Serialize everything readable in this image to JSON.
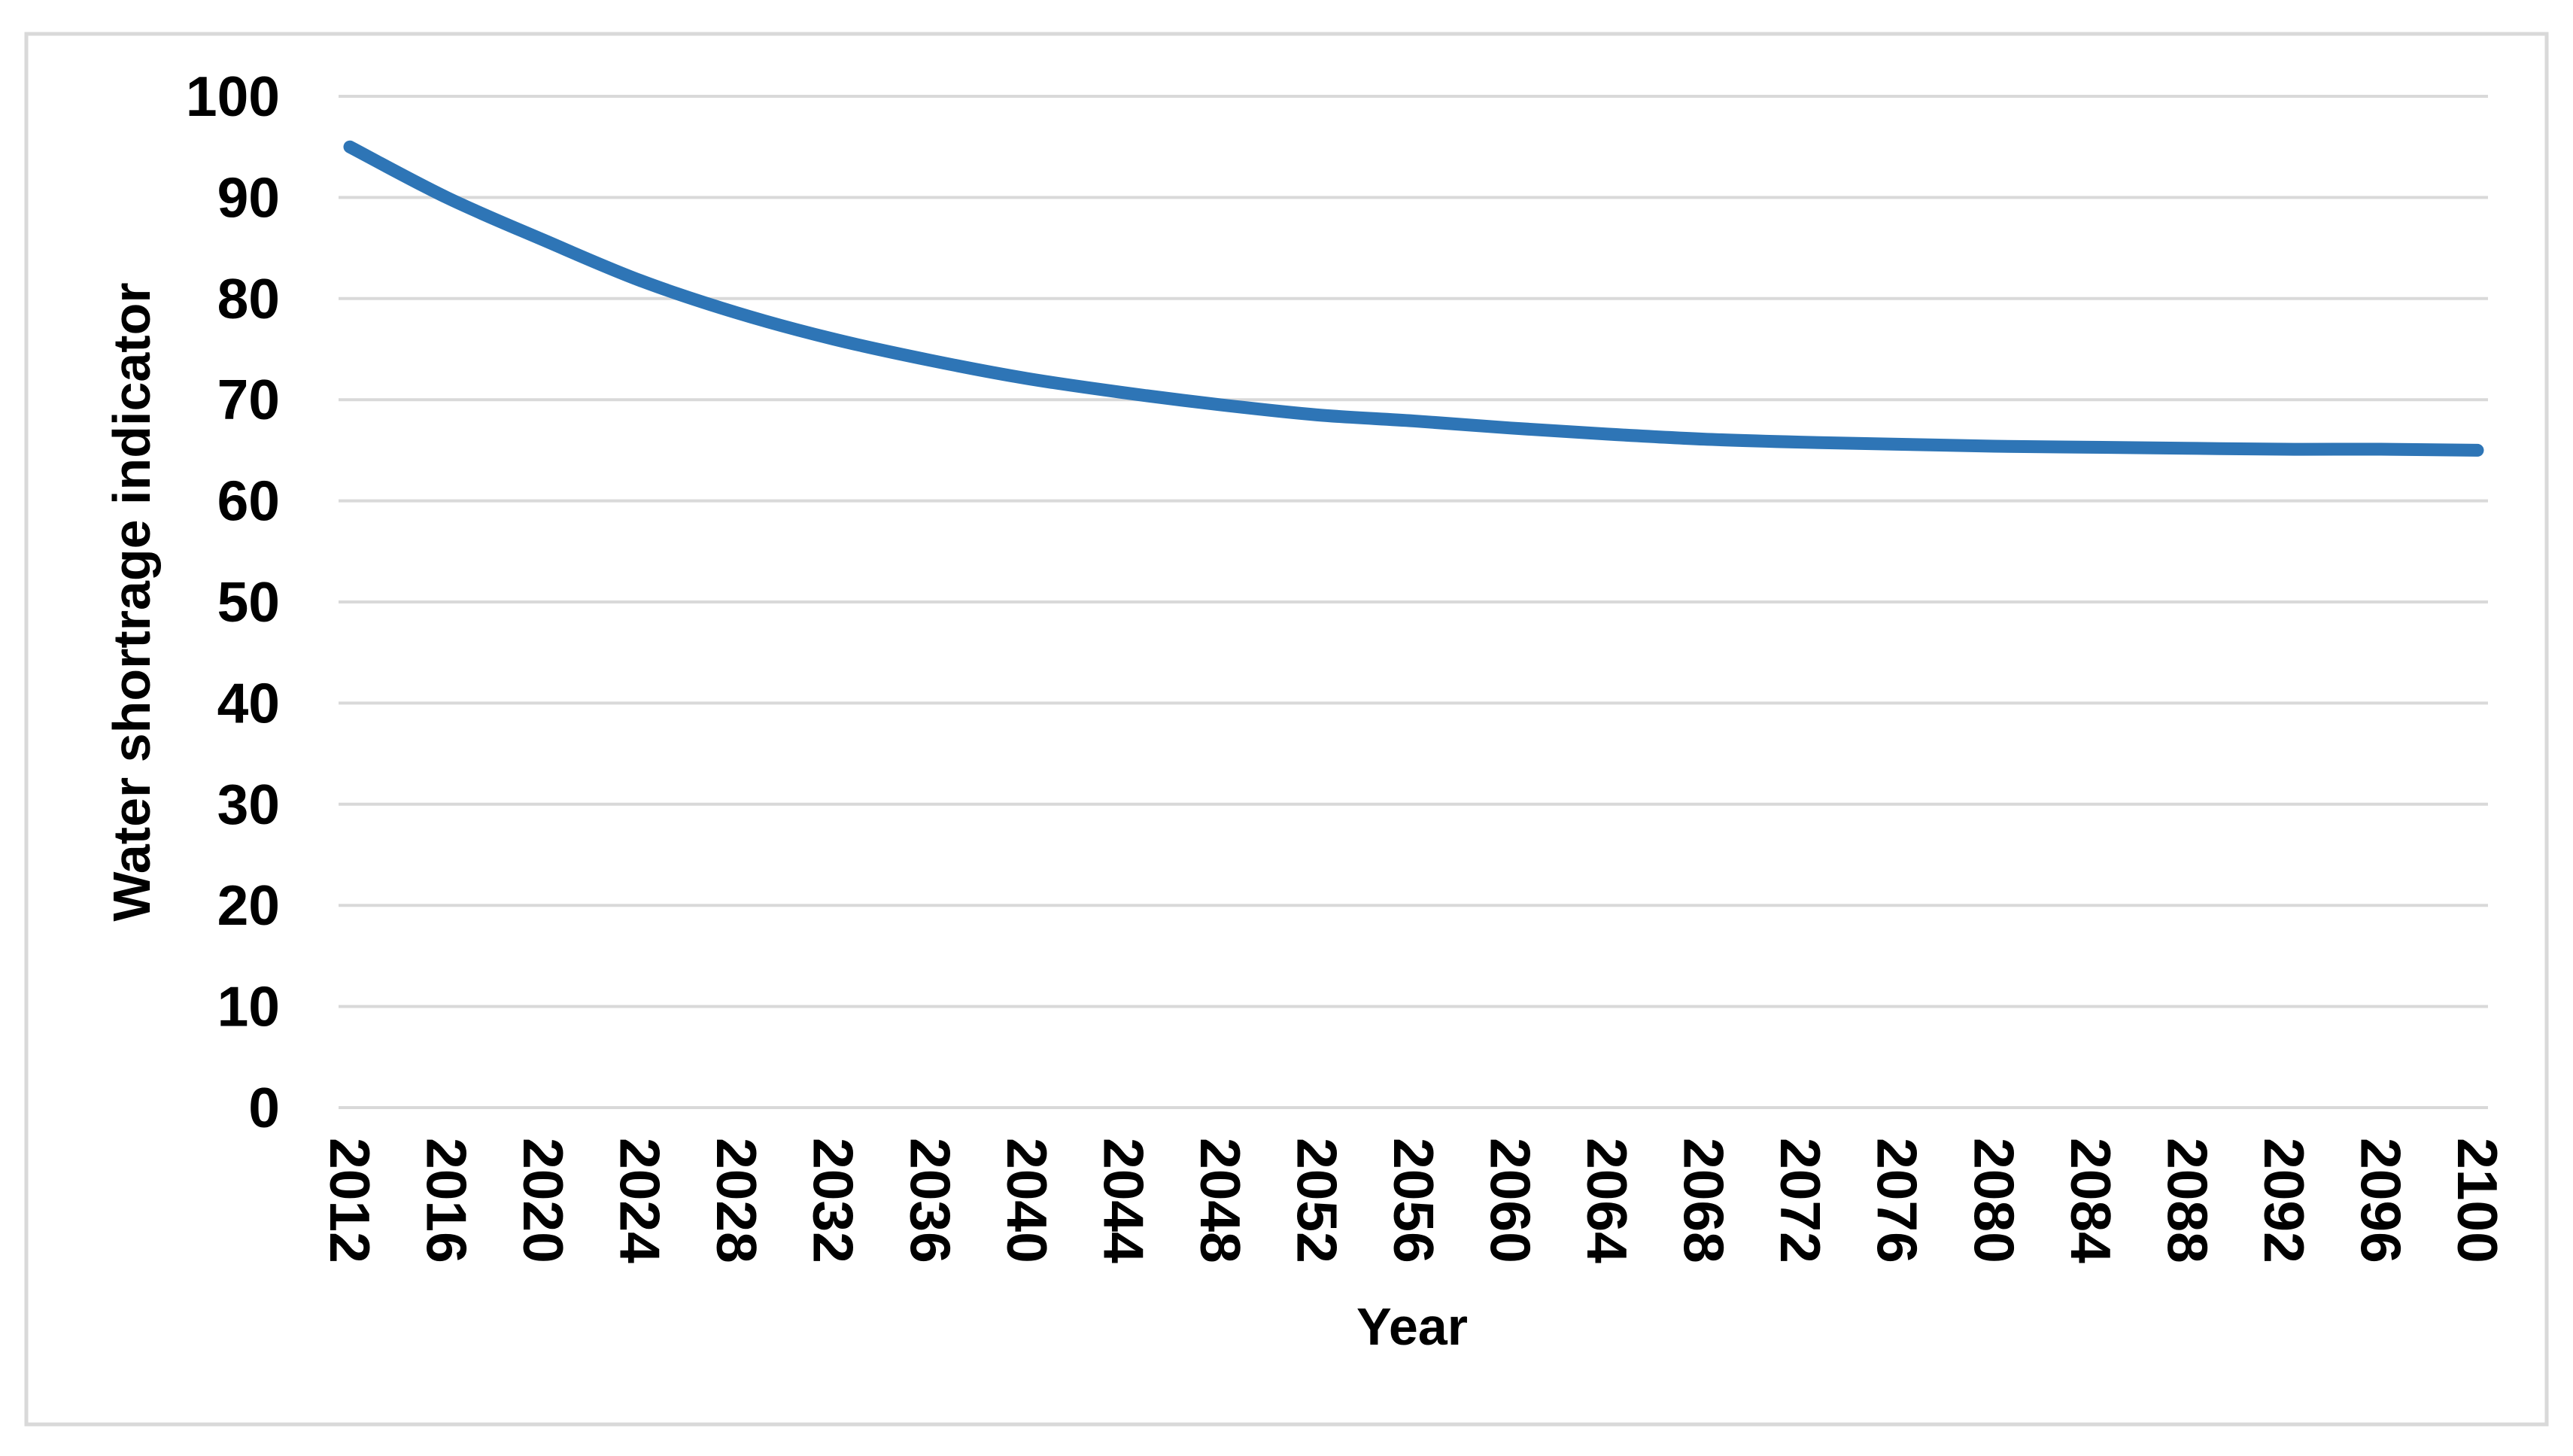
{
  "chart_data": {
    "type": "line",
    "title": "",
    "xlabel": "Year",
    "ylabel": "Water shortrage indicator",
    "x": [
      2012,
      2016,
      2020,
      2024,
      2028,
      2032,
      2036,
      2040,
      2044,
      2048,
      2052,
      2056,
      2060,
      2064,
      2068,
      2072,
      2076,
      2080,
      2084,
      2088,
      2092,
      2096,
      2100
    ],
    "values": [
      95.0,
      90.0,
      85.8,
      81.8,
      78.6,
      76.0,
      73.9,
      72.1,
      70.7,
      69.5,
      68.5,
      67.9,
      67.2,
      66.6,
      66.1,
      65.8,
      65.6,
      65.4,
      65.3,
      65.2,
      65.1,
      65.1,
      65.0
    ],
    "xlim": [
      2012,
      2100
    ],
    "ylim": [
      0,
      100
    ],
    "ystep": 10,
    "xstep": 4,
    "grid": "horizontal-only",
    "legend": "none",
    "colors": {
      "line": "#2E75B6",
      "gridline": "#D9D9D9",
      "figure_border": "#D9D9D9",
      "text": "#000000",
      "background": "#FFFFFF"
    }
  }
}
